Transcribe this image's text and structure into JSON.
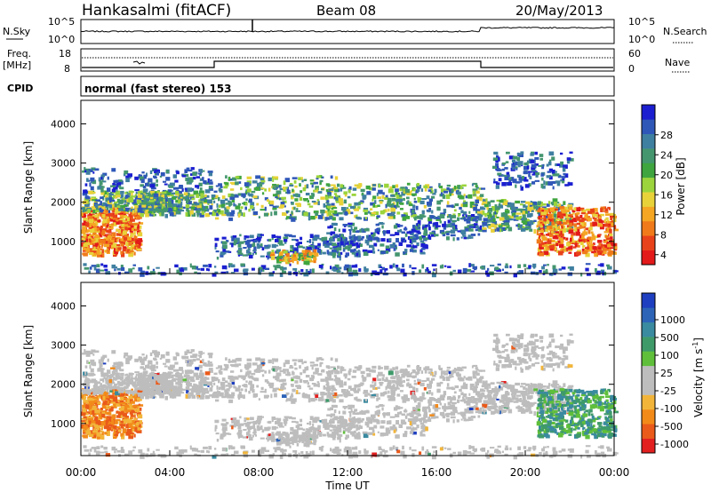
{
  "header": {
    "station": "Hankasalmi (fitACF)",
    "beam": "Beam 08",
    "date": "20/May/2013"
  },
  "panels": {
    "nsky": {
      "label": "N.Sky",
      "left_ticks": [
        "10^5",
        "10^0"
      ],
      "right_ticks": [
        "10^5",
        "10^0"
      ],
      "right_label": "N.Search",
      "step_hour": 18,
      "values_before": 0.35,
      "values_after": 0.6
    },
    "freq": {
      "label_top": "Freq.",
      "label_unit": "[MHz]",
      "left_ticks": [
        "18",
        "8"
      ],
      "right_ticks": [
        "60",
        "0"
      ],
      "right_label": "Nave"
    },
    "cpid": {
      "label": "CPID",
      "text": "normal (fast stereo) 153"
    }
  },
  "x_axis": {
    "label": "Time UT",
    "ticks": [
      "00:00",
      "04:00",
      "08:00",
      "12:00",
      "16:00",
      "20:00",
      "00:00"
    ]
  },
  "chart_data": [
    {
      "type": "heatmap",
      "title": "",
      "ylabel": "Slant Range [km]",
      "xlabel": "Time UT",
      "xlim": [
        0,
        24
      ],
      "ylim": [
        180,
        4600
      ],
      "yticks": [
        "1000",
        "2000",
        "3000",
        "4000"
      ],
      "colorbar": {
        "label": "Power [dB]",
        "ticks": [
          "4",
          "8",
          "12",
          "16",
          "20",
          "24",
          "28"
        ],
        "colors": [
          "#1b1fd0",
          "#2f57b8",
          "#3f7fa0",
          "#44966f",
          "#3fa53f",
          "#9bd43c",
          "#e8d23a",
          "#f5a623",
          "#f07a1a",
          "#e8421a",
          "#e31a1a"
        ]
      }
    },
    {
      "type": "heatmap",
      "title": "",
      "ylabel": "Slant Range [km]",
      "xlabel": "Time UT",
      "xlim": [
        0,
        24
      ],
      "ylim": [
        180,
        4600
      ],
      "yticks": [
        "1000",
        "2000",
        "3000",
        "4000"
      ],
      "colorbar": {
        "label": "Velocity [m s",
        "label_sup": "-1",
        "label_end": "]",
        "ticks": [
          "1000",
          "500",
          "100",
          "25",
          "-25",
          "-100",
          "-500",
          "-1000"
        ],
        "colors": [
          "#1e3fbf",
          "#2e64b8",
          "#3a8aa0",
          "#3f9a6a",
          "#5fbf3a",
          "#bdbdbd",
          "#bdbdbd",
          "#f2b53a",
          "#f28a1a",
          "#ea5a1a",
          "#e32020"
        ]
      }
    }
  ]
}
